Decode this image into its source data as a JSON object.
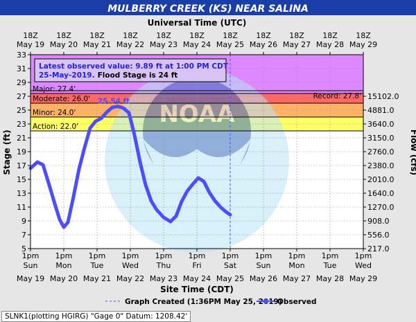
{
  "chart_data": {
    "type": "line",
    "title": "MULBERRY CREEK (KS) NEAR SALINA",
    "top_axis_label": "Universal Time (UTC)",
    "xlabel": "Site Time (CDT)",
    "ylabel": "Stage (ft)",
    "y2label": "Flow (cfs)",
    "ylim": [
      5,
      33
    ],
    "grid": true,
    "yticks": [
      5,
      7,
      9,
      11,
      13,
      15,
      17,
      19,
      21,
      23,
      25,
      27,
      29,
      31,
      33
    ],
    "days": [
      "May 19",
      "May 20",
      "May 21",
      "May 22",
      "May 23",
      "May 24",
      "May 25",
      "May 26",
      "May 27",
      "May 28",
      "May 29"
    ],
    "bottom_ticks": {
      "time": "1pm",
      "weekdays": [
        "Sun",
        "Mon",
        "Tue",
        "Wed",
        "Thu",
        "Fri",
        "Sat",
        "Sun",
        "Mon",
        "Tue",
        "Wed"
      ]
    },
    "top_ticks": {
      "time": "18Z"
    },
    "flow_ticks": [
      {
        "stage": 5,
        "label": "217.0"
      },
      {
        "stage": 7,
        "label": "556.0"
      },
      {
        "stage": 9,
        "label": "908.0"
      },
      {
        "stage": 11,
        "label": "1270.0"
      },
      {
        "stage": 13,
        "label": "1640.0"
      },
      {
        "stage": 15,
        "label": "2010.0"
      },
      {
        "stage": 17,
        "label": "2380.0"
      },
      {
        "stage": 19,
        "label": "2760.0"
      },
      {
        "stage": 21,
        "label": "3150.0"
      },
      {
        "stage": 23,
        "label": "3640.0"
      },
      {
        "stage": 25,
        "label": "4881.0"
      },
      {
        "stage": 27,
        "label": "15102.0"
      }
    ],
    "flood_categories": [
      {
        "label": "Action: 22.0'",
        "stage": 22.0,
        "color": "#ffff66"
      },
      {
        "label": "Minor: 24.0'",
        "stage": 24.0,
        "color": "#ffb266"
      },
      {
        "label": "Moderate: 26.0'",
        "stage": 26.0,
        "color": "#ff6666"
      },
      {
        "label": "Major: 27.4'",
        "stage": 27.4,
        "color": "#dd88ff"
      }
    ],
    "record": {
      "label": "Record: 27.8'",
      "stage": 27.8
    },
    "crest_label": "25.54 ft",
    "annotation": {
      "line1": "Latest observed value: 9.89 ft at 1:00 PM CDT",
      "line2_date": "25-May-2019.",
      "line2_text": "Flood Stage is 24 ft"
    },
    "graph_created": "Graph Created (1:36PM May 25, 2019)",
    "series": [
      {
        "name": "Observed",
        "color": "#4d4dff",
        "x": [
          "2019-05-19 13:00",
          "2019-05-19 18:00",
          "2019-05-19 22:00",
          "2019-05-20 02:00",
          "2019-05-20 06:00",
          "2019-05-20 10:00",
          "2019-05-20 13:00",
          "2019-05-20 16:00",
          "2019-05-20 20:00",
          "2019-05-21 00:00",
          "2019-05-21 04:00",
          "2019-05-21 08:00",
          "2019-05-21 12:00",
          "2019-05-21 16:00",
          "2019-05-21 20:00",
          "2019-05-22 00:00",
          "2019-05-22 04:00",
          "2019-05-22 08:00",
          "2019-05-22 12:00",
          "2019-05-22 16:00",
          "2019-05-22 20:00",
          "2019-05-23 00:00",
          "2019-05-23 04:00",
          "2019-05-23 08:00",
          "2019-05-23 13:00",
          "2019-05-23 18:00",
          "2019-05-23 22:00",
          "2019-05-24 02:00",
          "2019-05-24 06:00",
          "2019-05-24 10:00",
          "2019-05-24 14:00",
          "2019-05-24 18:00",
          "2019-05-24 22:00",
          "2019-05-25 02:00",
          "2019-05-25 06:00",
          "2019-05-25 10:00",
          "2019-05-25 13:00"
        ],
        "y": [
          16.6,
          17.5,
          17.1,
          14.5,
          11.8,
          9.2,
          8.1,
          8.8,
          12.5,
          16.5,
          19.6,
          22.4,
          23.4,
          23.8,
          24.7,
          25.4,
          25.54,
          25.3,
          24.6,
          21.4,
          17.5,
          14.2,
          11.9,
          10.6,
          9.5,
          8.9,
          9.7,
          11.8,
          13.3,
          14.3,
          15.2,
          14.7,
          13.1,
          11.9,
          11.0,
          10.3,
          9.89
        ]
      }
    ]
  },
  "legend": {
    "created_label": "Graph Created (1:36PM May 25, 2019)",
    "observed_label": "Observed"
  },
  "footer": "SLNK1(plotting HGIRG) \"Gage 0\" Datum: 1208.42'",
  "watermark": "NOAA"
}
